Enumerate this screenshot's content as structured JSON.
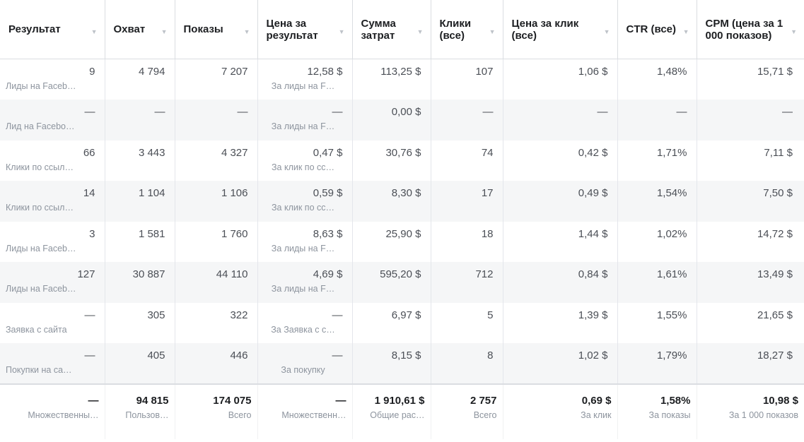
{
  "headers": [
    "Результат",
    "Охват",
    "Показы",
    "Цена за результат",
    "Сумма затрат",
    "Клики (все)",
    "Цена за клик (все)",
    "CTR (все)",
    "CPM (цена за 1 000 показов)"
  ],
  "rows": [
    {
      "result": "9",
      "result_sub": "Лиды на Faceb…",
      "reach": "4 794",
      "impr": "7 207",
      "cpr": "12,58 $",
      "cpr_sub": "За лиды на F…",
      "spend": "113,25 $",
      "clicks": "107",
      "cpc": "1,06 $",
      "ctr": "1,48%",
      "cpm": "15,71 $"
    },
    {
      "result": "—",
      "result_sub": "Лид на Facebo…",
      "reach": "—",
      "impr": "—",
      "cpr": "—",
      "cpr_sub": "За лиды на F…",
      "spend": "0,00 $",
      "clicks": "—",
      "cpc": "—",
      "ctr": "—",
      "cpm": "—"
    },
    {
      "result": "66",
      "result_sub": "Клики по ссыл…",
      "reach": "3 443",
      "impr": "4 327",
      "cpr": "0,47 $",
      "cpr_sub": "За клик по сс…",
      "spend": "30,76 $",
      "clicks": "74",
      "cpc": "0,42 $",
      "ctr": "1,71%",
      "cpm": "7,11 $"
    },
    {
      "result": "14",
      "result_sub": "Клики по ссыл…",
      "reach": "1 104",
      "impr": "1 106",
      "cpr": "0,59 $",
      "cpr_sub": "За клик по сс…",
      "spend": "8,30 $",
      "clicks": "17",
      "cpc": "0,49 $",
      "ctr": "1,54%",
      "cpm": "7,50 $"
    },
    {
      "result": "3",
      "result_sub": "Лиды на Faceb…",
      "reach": "1 581",
      "impr": "1 760",
      "cpr": "8,63 $",
      "cpr_sub": "За лиды на F…",
      "spend": "25,90 $",
      "clicks": "18",
      "cpc": "1,44 $",
      "ctr": "1,02%",
      "cpm": "14,72 $"
    },
    {
      "result": "127",
      "result_sub": "Лиды на Faceb…",
      "reach": "30 887",
      "impr": "44 110",
      "cpr": "4,69 $",
      "cpr_sub": "За лиды на F…",
      "spend": "595,20 $",
      "clicks": "712",
      "cpc": "0,84 $",
      "ctr": "1,61%",
      "cpm": "13,49 $"
    },
    {
      "result": "—",
      "result_sub": "Заявка с сайта",
      "reach": "305",
      "impr": "322",
      "cpr": "—",
      "cpr_sub": "За Заявка с с…",
      "spend": "6,97 $",
      "clicks": "5",
      "cpc": "1,39 $",
      "ctr": "1,55%",
      "cpm": "21,65 $"
    },
    {
      "result": "—",
      "result_sub": "Покупки на са…",
      "reach": "405",
      "impr": "446",
      "cpr": "—",
      "cpr_sub": "За покупку",
      "spend": "8,15 $",
      "clicks": "8",
      "cpc": "1,02 $",
      "ctr": "1,79%",
      "cpm": "18,27 $"
    }
  ],
  "totals": {
    "result": "—",
    "result_sub": "Множественны…",
    "reach": "94 815",
    "reach_sub": "Пользов…",
    "impr": "174 075",
    "impr_sub": "Всего",
    "cpr": "—",
    "cpr_sub": "Множественн…",
    "spend": "1 910,61 $",
    "spend_sub": "Общие рас…",
    "clicks": "2 757",
    "clicks_sub": "Всего",
    "cpc": "0,69 $",
    "cpc_sub": "За клик",
    "ctr": "1,58%",
    "ctr_sub": "За показы",
    "cpm": "10,98 $",
    "cpm_sub": "За 1 000 показов"
  },
  "icons": {
    "sort": "sort-caret-icon"
  }
}
